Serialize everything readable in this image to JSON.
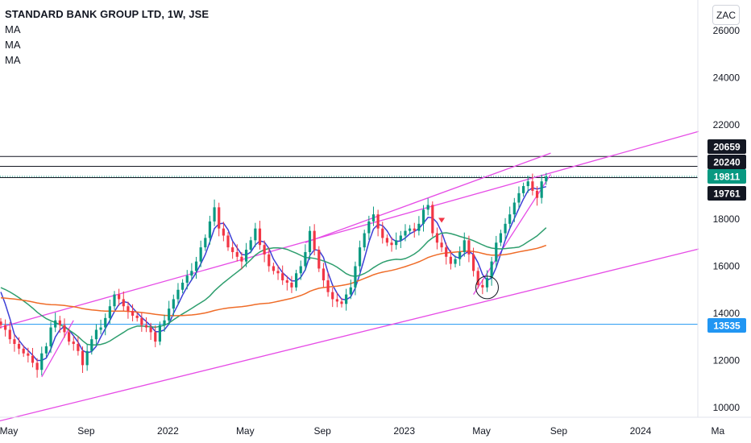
{
  "header": {
    "title": "STANDARD BANK GROUP LTD, 1W, JSE",
    "indicators": [
      "MA",
      "MA",
      "MA"
    ]
  },
  "currency_button": "ZAC",
  "colors": {
    "up": "#089981",
    "down": "#f23645",
    "ma_fast": "#3d3fd6",
    "ma_mid": "#2e9e6e",
    "ma_slow": "#ef6c28",
    "channel": "#e64ce6",
    "level": "#131722",
    "support": "#2196f3"
  },
  "chart_data": {
    "type": "candlestick",
    "timeframe": "1W",
    "ylim": [
      9600,
      26400
    ],
    "y_ticks": [
      10000,
      12000,
      14000,
      16000,
      18000,
      20000,
      22000,
      24000,
      26000
    ],
    "y_tick_labels": [
      "10000",
      "12000",
      "14000",
      "16000",
      "18000",
      "",
      "22000",
      "24000",
      "26000"
    ],
    "x_ticks": [
      "May",
      "Sep",
      "2022",
      "May",
      "Sep",
      "2023",
      "May",
      "Sep",
      "2024",
      "Ma"
    ],
    "x_tick_weeks": [
      0,
      17,
      35,
      52,
      69,
      87,
      104,
      121,
      139,
      156
    ],
    "close_series": [
      13500,
      13300,
      12900,
      12700,
      12500,
      12300,
      12200,
      11900,
      11600,
      12300,
      12600,
      13400,
      13700,
      13500,
      13200,
      12800,
      12700,
      12400,
      11800,
      12400,
      12900,
      13300,
      13400,
      13800,
      14300,
      14800,
      14600,
      14300,
      14100,
      13900,
      13800,
      13500,
      13400,
      13200,
      12800,
      13500,
      13700,
      14200,
      14600,
      15000,
      15300,
      15600,
      15800,
      16200,
      16800,
      17200,
      17900,
      18500,
      17600,
      17300,
      16800,
      16600,
      16400,
      16200,
      16700,
      17100,
      17600,
      16900,
      16500,
      16000,
      15800,
      15700,
      15400,
      15300,
      15100,
      15700,
      16000,
      16600,
      17500,
      16700,
      15900,
      15400,
      14900,
      14600,
      14500,
      14400,
      14800,
      15100,
      16000,
      16800,
      17400,
      17900,
      18200,
      17600,
      17200,
      17000,
      16900,
      17100,
      17300,
      17500,
      17600,
      17500,
      17800,
      18400,
      18600,
      17400,
      17000,
      16800,
      16400,
      16100,
      16300,
      16600,
      17100,
      16500,
      15800,
      15200,
      15100,
      15500,
      16200,
      17000,
      17400,
      17800,
      18200,
      18700,
      19100,
      19400,
      19600,
      19200,
      18900,
      19600,
      19811
    ],
    "levels": [
      {
        "label": "20659",
        "value": 20659,
        "color": "#131722"
      },
      {
        "label": "20240",
        "value": 20240,
        "color": "#131722"
      },
      {
        "label": "19811",
        "value": 19811,
        "color": "#089981"
      },
      {
        "label": "19761",
        "value": 19761,
        "color": "#131722"
      },
      {
        "label": "13535",
        "value": 13535,
        "color": "#2196f3"
      }
    ],
    "ma_lines": [
      {
        "name": "MA",
        "color": "#3d3fd6",
        "period": 4
      },
      {
        "name": "MA",
        "color": "#2e9e6e",
        "period": 20
      },
      {
        "name": "MA",
        "color": "#ef6c28",
        "period": 60
      }
    ],
    "annotations": {
      "circle_week": 107,
      "arrow_week": 97
    },
    "grid": false,
    "scale_note": "price axis on right"
  }
}
